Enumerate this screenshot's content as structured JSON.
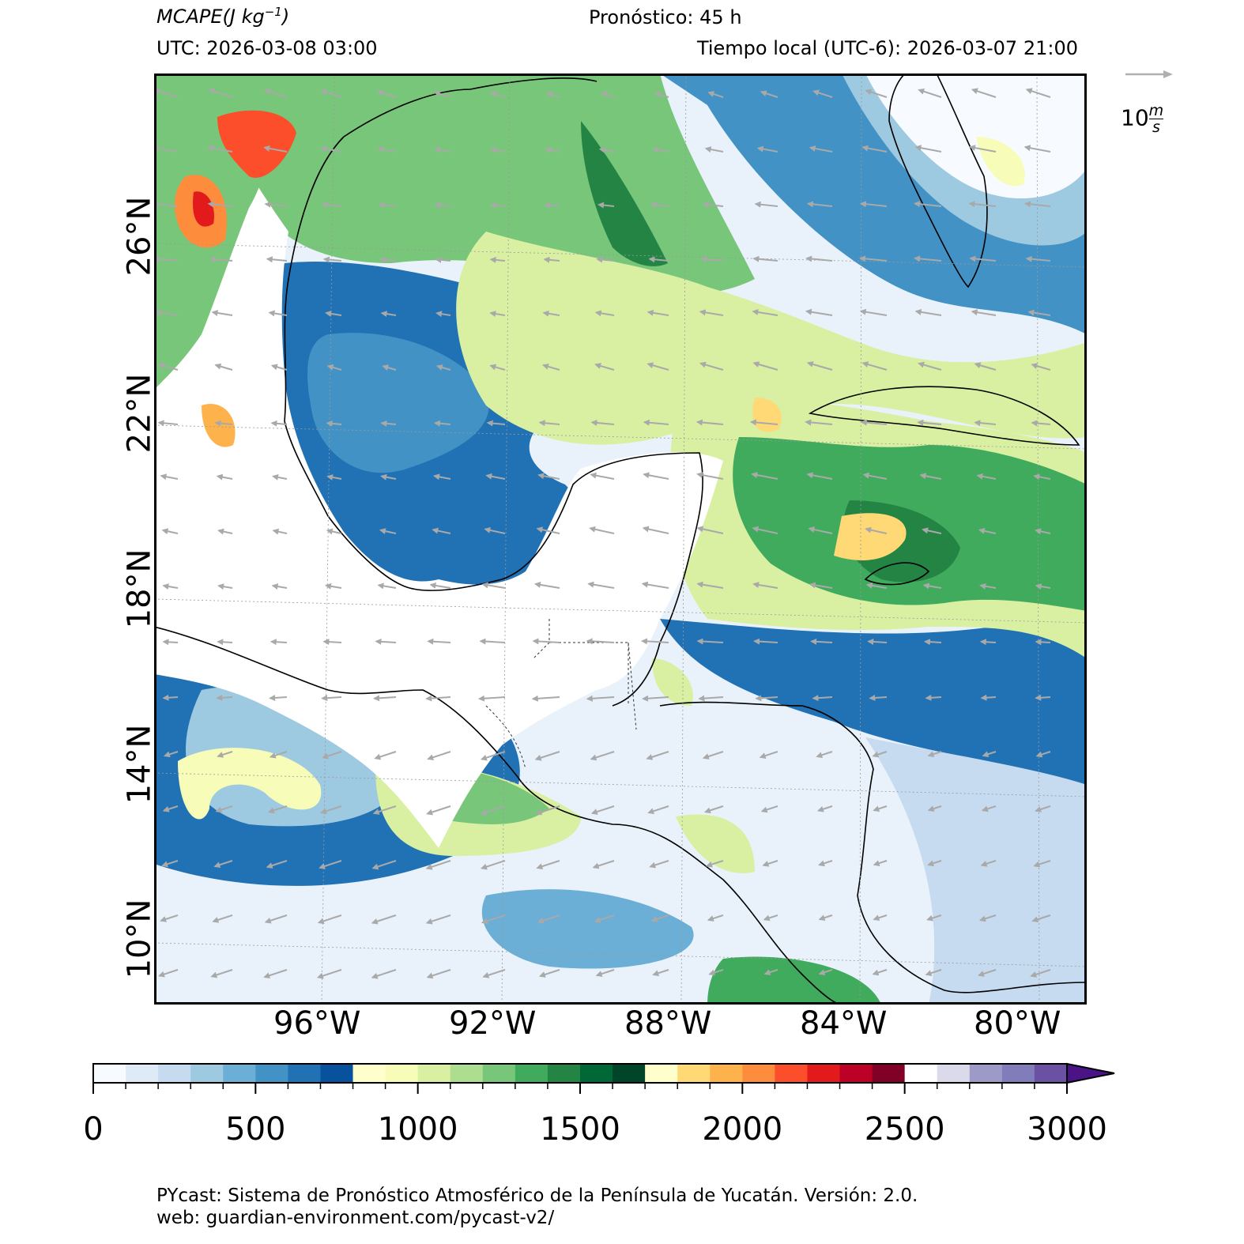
{
  "header": {
    "variable": "MCAPE",
    "units_base": "(J kg",
    "units_exp": "−1",
    "units_close": ")",
    "forecast": "Pronóstico: 45 h",
    "utc": "UTC:  2026-03-08 03:00",
    "local_time": "Tiempo local (UTC-6): 2026-03-07 21:00"
  },
  "map": {
    "lat_labels": [
      "26°N",
      "22°N",
      "18°N",
      "14°N",
      "10°N"
    ],
    "lon_labels": [
      "96°W",
      "92°W",
      "88°W",
      "84°W",
      "80°W"
    ],
    "extent": {
      "lon_min": -99.5,
      "lon_max": -78.5,
      "lat_min": 8.5,
      "lat_max": 29.5
    },
    "land_color": "#ffffff",
    "coast_color": "#000000"
  },
  "wind_reference": {
    "value": "10",
    "unit_num": "m",
    "unit_den": "s"
  },
  "colorbar": {
    "ticks": [
      "0",
      "500",
      "1000",
      "1500",
      "2000",
      "2500",
      "3000"
    ],
    "extend": "max",
    "colors": [
      "#f7fbff",
      "#deebf7",
      "#c6dbef",
      "#9ecae1",
      "#6baed6",
      "#4292c6",
      "#2171b5",
      "#08519c",
      "#ffffcc",
      "#f7fcb9",
      "#d9f0a3",
      "#addd8e",
      "#78c679",
      "#41ab5d",
      "#238443",
      "#006837",
      "#004529",
      "#ffffcc",
      "#fed976",
      "#feb24c",
      "#fd8d3c",
      "#fc4e2a",
      "#e31a1c",
      "#bd0026",
      "#800026",
      "#ffffff",
      "#dadaeb",
      "#9e9ac8",
      "#807dba",
      "#6a51a3",
      "#4a1486"
    ]
  },
  "footer": {
    "line1": "PYcast: Sistema de Pronóstico Atmosférico de la Península de Yucatán. Versión: 2.0.",
    "line2": "web: guardian-environment.com/pycast-v2/"
  }
}
